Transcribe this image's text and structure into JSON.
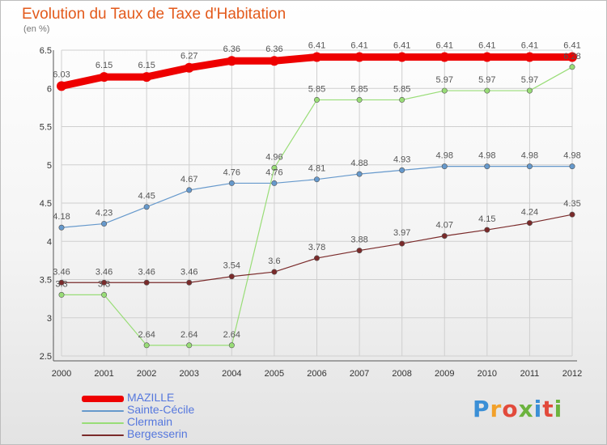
{
  "header": {
    "title": "Evolution du Taux de Taxe d'Habitation",
    "subtitle": "(en %)"
  },
  "logo": {
    "text": "Proxiti",
    "colors": [
      "#3b8fd6",
      "#f2a12a",
      "#e24a3b",
      "#6cb33e",
      "#3b8fd6",
      "#e24a3b",
      "#6cb33e"
    ]
  },
  "chart_data": {
    "type": "line",
    "title": "Evolution du Taux de Taxe d'Habitation",
    "ylabel": "(en %)",
    "xlabel": "",
    "x": [
      "2000",
      "2001",
      "2002",
      "2003",
      "2004",
      "2005",
      "2006",
      "2007",
      "2008",
      "2009",
      "2010",
      "2011",
      "2012"
    ],
    "ylim": [
      2.5,
      6.5
    ],
    "yticks": [
      "2.5",
      "3",
      "3.5",
      "4",
      "4.5",
      "5",
      "5.5",
      "6",
      "6.5"
    ],
    "grid": true,
    "legend_position": "bottom-left",
    "series": [
      {
        "name": "MAZILLE",
        "color": "#ee0000",
        "values": [
          6.03,
          6.15,
          6.15,
          6.27,
          6.36,
          6.36,
          6.41,
          6.41,
          6.41,
          6.41,
          6.41,
          6.41,
          6.41
        ],
        "labels": [
          "6.03",
          "6.15",
          "6.15",
          "6.27",
          "6.36",
          "6.36",
          "6.41",
          "6.41",
          "6.41",
          "6.41",
          "6.41",
          "6.41",
          "6.41"
        ]
      },
      {
        "name": "Sainte-Cécile",
        "color": "#6699cc",
        "values": [
          4.18,
          4.23,
          4.45,
          4.67,
          4.76,
          4.76,
          4.81,
          4.88,
          4.93,
          4.98,
          4.98,
          4.98,
          4.98
        ],
        "labels": [
          "4.18",
          "4.23",
          "4.45",
          "4.67",
          "4.76",
          "4.76",
          "4.81",
          "4.88",
          "4.93",
          "4.98",
          "4.98",
          "4.98",
          "4.98"
        ]
      },
      {
        "name": "Clermain",
        "color": "#99dd77",
        "values": [
          3.3,
          3.3,
          2.64,
          2.64,
          2.64,
          4.96,
          5.85,
          5.85,
          5.85,
          5.97,
          5.97,
          5.97,
          6.28
        ],
        "labels": [
          "3.3",
          "3.3",
          "2.64",
          "2.64",
          "2.64",
          "4.96",
          "5.85",
          "5.85",
          "5.85",
          "5.97",
          "5.97",
          "5.97",
          "6.28"
        ]
      },
      {
        "name": "Bergesserin",
        "color": "#7a2a2a",
        "values": [
          3.46,
          3.46,
          3.46,
          3.46,
          3.54,
          3.6,
          3.78,
          3.88,
          3.97,
          4.07,
          4.15,
          4.24,
          4.35
        ],
        "labels": [
          "3.46",
          "3.46",
          "3.46",
          "3.46",
          "3.54",
          "3.6",
          "3.78",
          "3.88",
          "3.97",
          "4.07",
          "4.15",
          "4.24",
          "4.35"
        ]
      }
    ]
  }
}
